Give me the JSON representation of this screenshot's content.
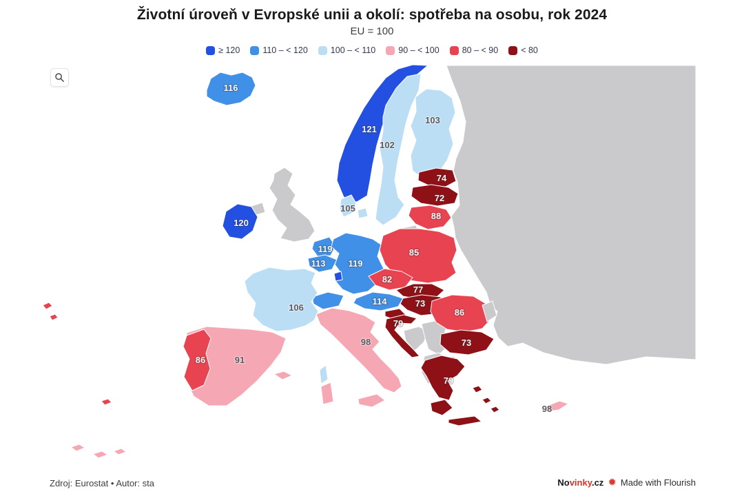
{
  "header": {
    "title": "Životní úroveň v Evropské unii a okolí: spotřeba na osobu, rok 2024",
    "subtitle": "EU = 100"
  },
  "legend": [
    {
      "key": "ge120",
      "label": "≥ 120",
      "color": "#2350e1"
    },
    {
      "key": "110-120",
      "label": "110 – < 120",
      "color": "#4190e7"
    },
    {
      "key": "100-110",
      "label": "100 – < 110",
      "color": "#bcdef5"
    },
    {
      "key": "90-100",
      "label": "90 – < 100",
      "color": "#f5a7b3"
    },
    {
      "key": "80-90",
      "label": "80 – < 90",
      "color": "#e84350"
    },
    {
      "key": "lt80",
      "label": "< 80",
      "color": "#8e1117"
    }
  ],
  "chart_data": {
    "type": "choropleth-map",
    "region": "Europe",
    "unit": "index, EU = 100 (spotřeba na osobu)",
    "no_data_color": "#cacacc",
    "bins": [
      {
        "key": "ge120",
        "label": "≥ 120",
        "color": "#2350e1"
      },
      {
        "key": "110-120",
        "label": "110 – < 120",
        "color": "#4190e7"
      },
      {
        "key": "100-110",
        "label": "100 – < 110",
        "color": "#bcdef5"
      },
      {
        "key": "90-100",
        "label": "90 – < 100",
        "color": "#f5a7b3"
      },
      {
        "key": "80-90",
        "label": "80 – < 90",
        "color": "#e84350"
      },
      {
        "key": "lt80",
        "label": "< 80",
        "color": "#8e1117"
      }
    ],
    "countries": [
      {
        "id": "east_europe",
        "name": "Eastern neighbours (no data)",
        "value": null,
        "bin": "nodata"
      },
      {
        "id": "uk",
        "name": "United Kingdom (no data)",
        "value": null,
        "bin": "nodata"
      },
      {
        "id": "kaliningrad",
        "name": "Kaliningrad (no data)",
        "value": null,
        "bin": "nodata"
      },
      {
        "id": "western_balkans",
        "name": "Western Balkans (no data)",
        "value": null,
        "bin": "nodata"
      },
      {
        "id": "norway",
        "name": "Norway",
        "value": 121,
        "bin": "ge120"
      },
      {
        "id": "sweden",
        "name": "Sweden",
        "value": 102,
        "bin": "100-110"
      },
      {
        "id": "finland",
        "name": "Finland",
        "value": 103,
        "bin": "100-110"
      },
      {
        "id": "iceland",
        "name": "Iceland",
        "value": 116,
        "bin": "110-120"
      },
      {
        "id": "denmark",
        "name": "Denmark",
        "value": 105,
        "bin": "100-110"
      },
      {
        "id": "estonia",
        "name": "Estonia",
        "value": 74,
        "bin": "lt80"
      },
      {
        "id": "latvia",
        "name": "Latvia",
        "value": 72,
        "bin": "lt80"
      },
      {
        "id": "lithuania",
        "name": "Lithuania",
        "value": 88,
        "bin": "80-90"
      },
      {
        "id": "ireland",
        "name": "Ireland",
        "value": 120,
        "bin": "ge120"
      },
      {
        "id": "netherlands",
        "name": "Netherlands",
        "value": 119,
        "bin": "110-120"
      },
      {
        "id": "belgium",
        "name": "Belgium",
        "value": 113,
        "bin": "110-120"
      },
      {
        "id": "germany",
        "name": "Germany",
        "value": 119,
        "bin": "110-120"
      },
      {
        "id": "luxembourg",
        "name": "Luxembourg",
        "value": null,
        "bin": "ge120"
      },
      {
        "id": "poland",
        "name": "Poland",
        "value": 85,
        "bin": "80-90"
      },
      {
        "id": "czechia",
        "name": "Czechia",
        "value": 82,
        "bin": "80-90"
      },
      {
        "id": "slovakia",
        "name": "Slovakia",
        "value": 77,
        "bin": "lt80"
      },
      {
        "id": "austria",
        "name": "Austria",
        "value": 114,
        "bin": "110-120"
      },
      {
        "id": "hungary",
        "name": "Hungary",
        "value": 73,
        "bin": "lt80"
      },
      {
        "id": "switzerland",
        "name": "Switzerland",
        "value": null,
        "bin": "110-120"
      },
      {
        "id": "france",
        "name": "France",
        "value": 106,
        "bin": "100-110"
      },
      {
        "id": "spain",
        "name": "Spain",
        "value": 91,
        "bin": "90-100"
      },
      {
        "id": "portugal",
        "name": "Portugal",
        "value": 86,
        "bin": "80-90"
      },
      {
        "id": "italy",
        "name": "Italy",
        "value": 98,
        "bin": "90-100"
      },
      {
        "id": "slovenia",
        "name": "Slovenia",
        "value": null,
        "bin": "lt80"
      },
      {
        "id": "croatia",
        "name": "Croatia",
        "value": 79,
        "bin": "lt80"
      },
      {
        "id": "romania",
        "name": "Romania",
        "value": 86,
        "bin": "80-90"
      },
      {
        "id": "moldova",
        "name": "Moldova (no data)",
        "value": null,
        "bin": "nodata"
      },
      {
        "id": "bulgaria",
        "name": "Bulgaria",
        "value": 73,
        "bin": "lt80"
      },
      {
        "id": "greece",
        "name": "Greece",
        "value": 79,
        "bin": "lt80"
      },
      {
        "id": "cyprus",
        "name": "Cyprus",
        "value": 98,
        "bin": "90-100"
      }
    ]
  },
  "footer": {
    "source": "Zdroj: Eurostat • Autor: sta",
    "brand_prefix": "No",
    "brand_accent": "vinky",
    "brand_suffix": ".cz",
    "attribution": "Made with Flourish"
  }
}
